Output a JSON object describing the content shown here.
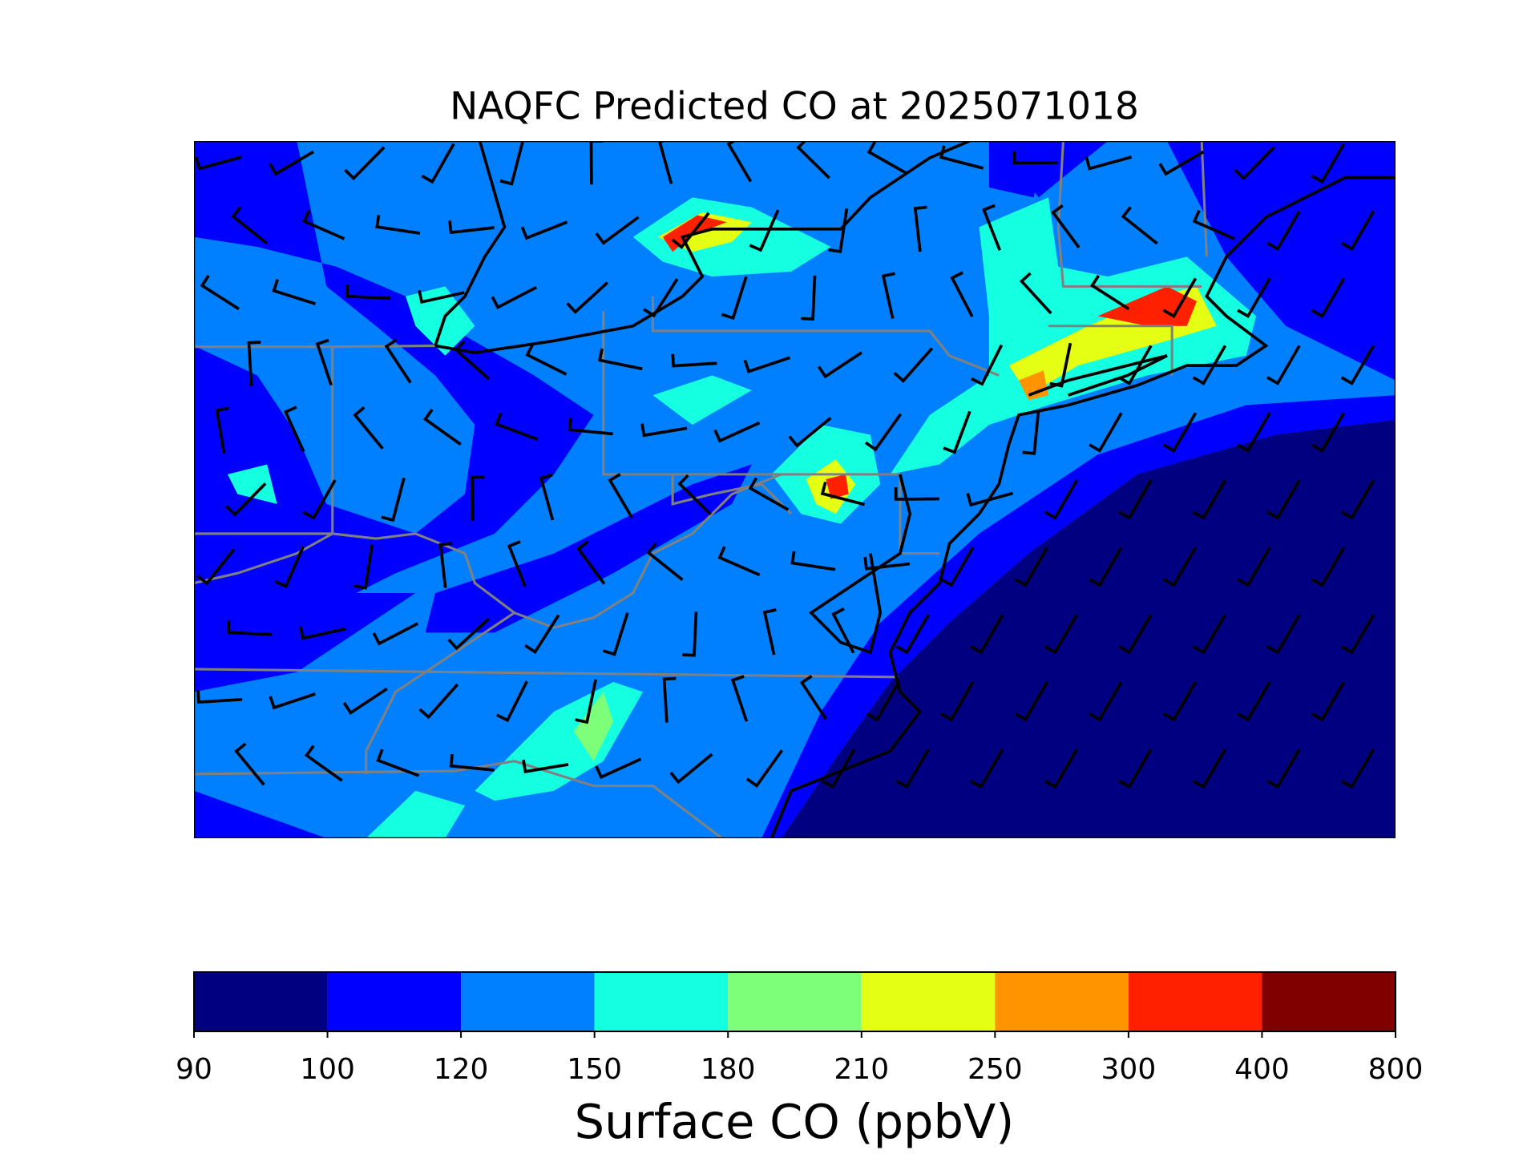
{
  "title": "NAQFC Predicted CO at 2025071018",
  "colorbar": {
    "label": "Surface CO (ppbV)",
    "ticks": [
      90,
      100,
      120,
      150,
      180,
      210,
      250,
      300,
      400,
      800
    ],
    "colors": [
      "#000080",
      "#0000ff",
      "#0080ff",
      "#15ffe1",
      "#7dff7a",
      "#e4ff13",
      "#ff9400",
      "#ff2000",
      "#800000"
    ]
  }
}
